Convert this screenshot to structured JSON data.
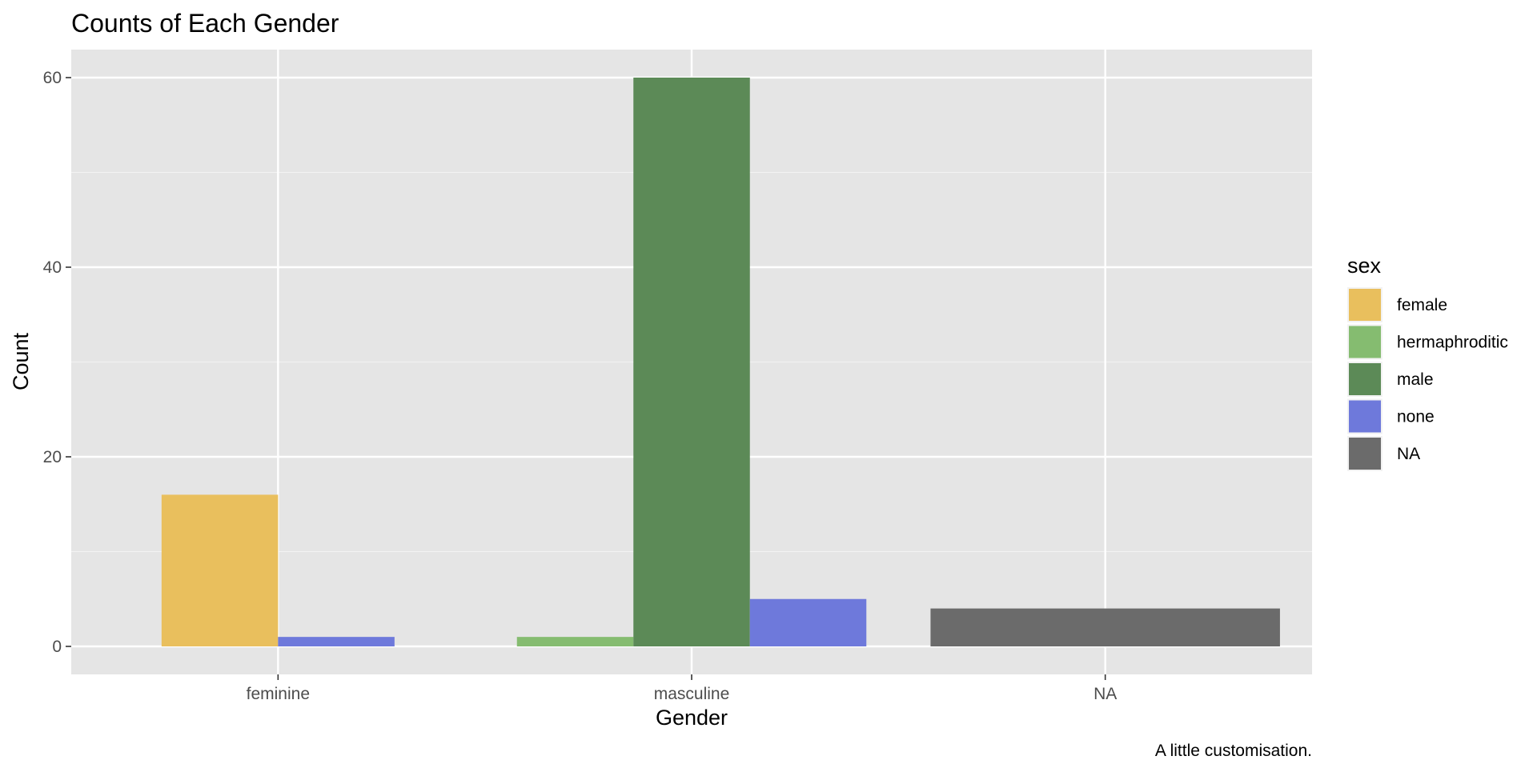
{
  "chart_data": {
    "type": "bar",
    "title": "Counts of Each Gender",
    "xlabel": "Gender",
    "ylabel": "Count",
    "caption": "A little customisation.",
    "categories": [
      "feminine",
      "masculine",
      "NA"
    ],
    "ylim": [
      0,
      63
    ],
    "yticks": [
      0,
      20,
      40,
      60
    ],
    "grid": true,
    "legend_title": "sex",
    "legend_position": "right",
    "legend": [
      {
        "name": "female",
        "color": "#E9BF5D"
      },
      {
        "name": "hermaphroditic",
        "color": "#85BC70"
      },
      {
        "name": "male",
        "color": "#5C8A57"
      },
      {
        "name": "none",
        "color": "#6E79DB"
      },
      {
        "name": "NA",
        "color": "#6B6B6B"
      }
    ],
    "bars": [
      {
        "category": "feminine",
        "sex": "female",
        "value": 16
      },
      {
        "category": "feminine",
        "sex": "none",
        "value": 1
      },
      {
        "category": "masculine",
        "sex": "hermaphroditic",
        "value": 1
      },
      {
        "category": "masculine",
        "sex": "male",
        "value": 60
      },
      {
        "category": "masculine",
        "sex": "none",
        "value": 5
      },
      {
        "category": "NA",
        "sex": "NA",
        "value": 4
      }
    ]
  }
}
